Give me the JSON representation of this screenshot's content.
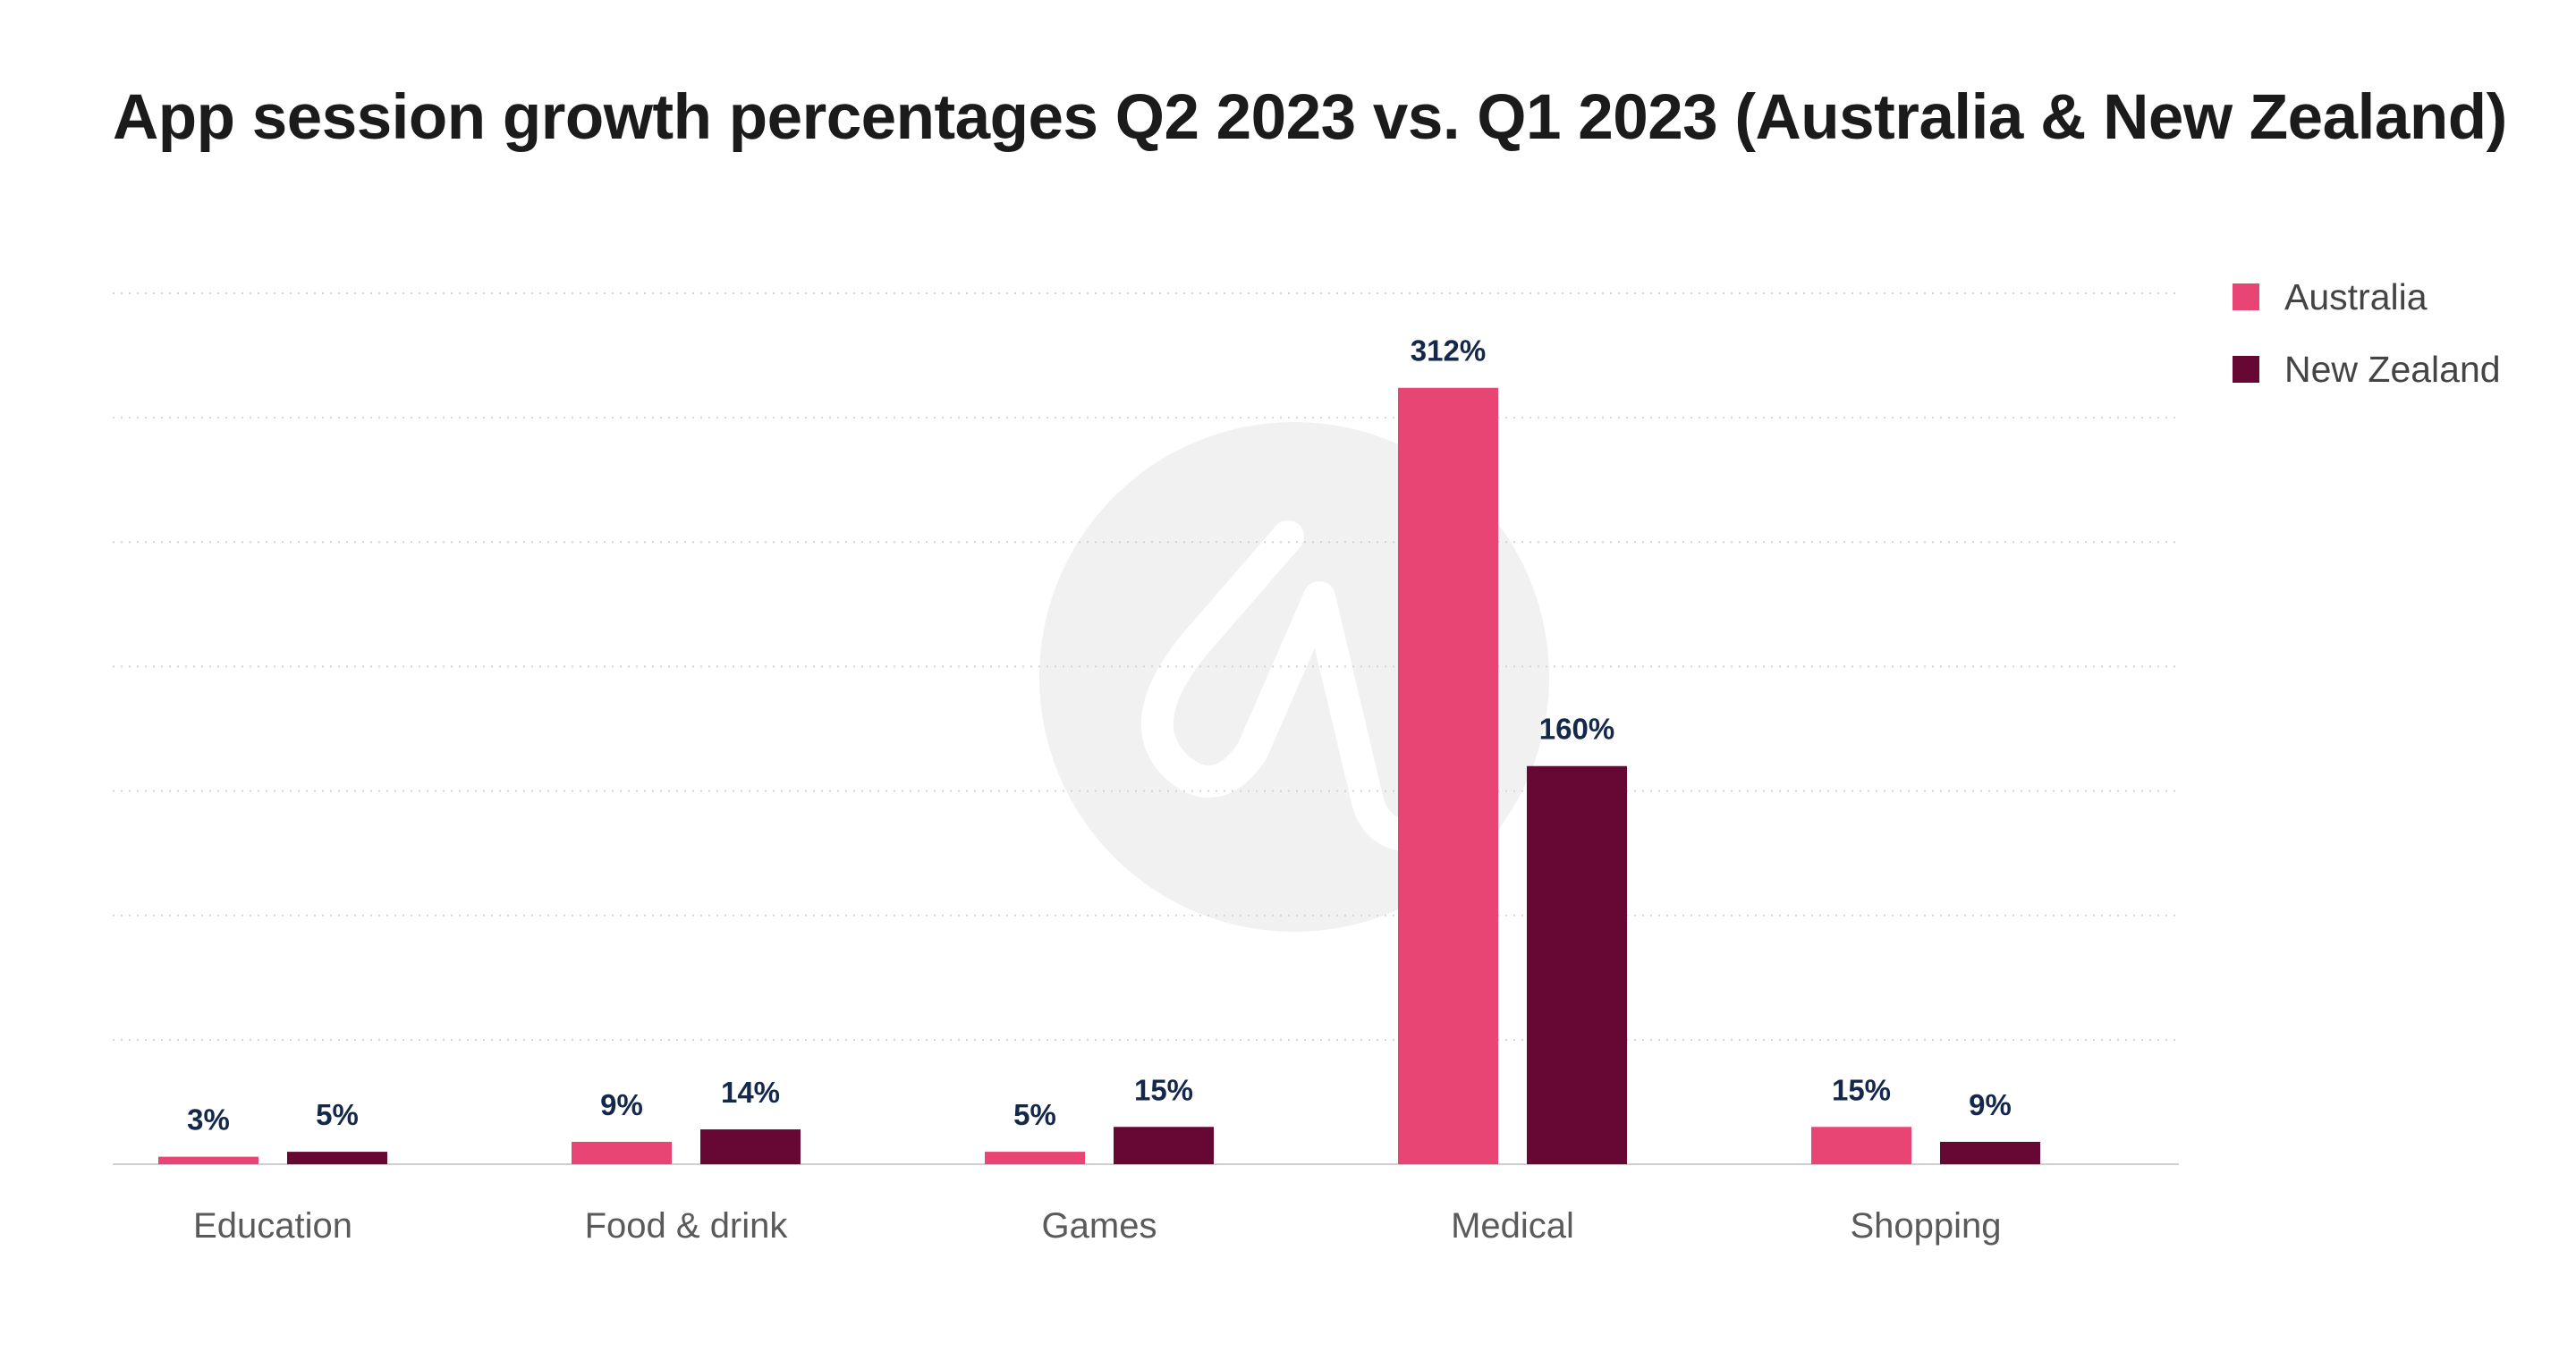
{
  "title": "App session growth percentages Q2 2023 vs. Q1 2023 (Australia & New Zealand)",
  "colors": {
    "australia": "#e94574",
    "new_zealand": "#660833",
    "value_label": "#14284b",
    "tick_label": "#5a5a5a",
    "gridline": "#d4d4d4",
    "axis": "#cfcfcf",
    "watermark": "#f1f1f1"
  },
  "watermark": {
    "icon": "adjust-logo-icon"
  },
  "chart_data": {
    "type": "bar",
    "title": "App session growth percentages Q2 2023 vs. Q1 2023 (Australia & New Zealand)",
    "xlabel": "",
    "ylabel": "",
    "categories": [
      "Education",
      "Food & drink",
      "Games",
      "Medical",
      "Shopping"
    ],
    "series": [
      {
        "name": "Australia",
        "values": [
          3,
          9,
          5,
          312,
          15
        ],
        "labels": [
          "3%",
          "9%",
          "5%",
          "312%",
          "15%"
        ]
      },
      {
        "name": "New Zealand",
        "values": [
          5,
          14,
          15,
          160,
          9
        ],
        "labels": [
          "5%",
          "14%",
          "15%",
          "160%",
          "9%"
        ]
      }
    ],
    "ylim": [
      0,
      350
    ],
    "grid": true,
    "legend_position": "top-right"
  },
  "legend": {
    "items": [
      {
        "label": "Australia"
      },
      {
        "label": "New Zealand"
      }
    ]
  }
}
